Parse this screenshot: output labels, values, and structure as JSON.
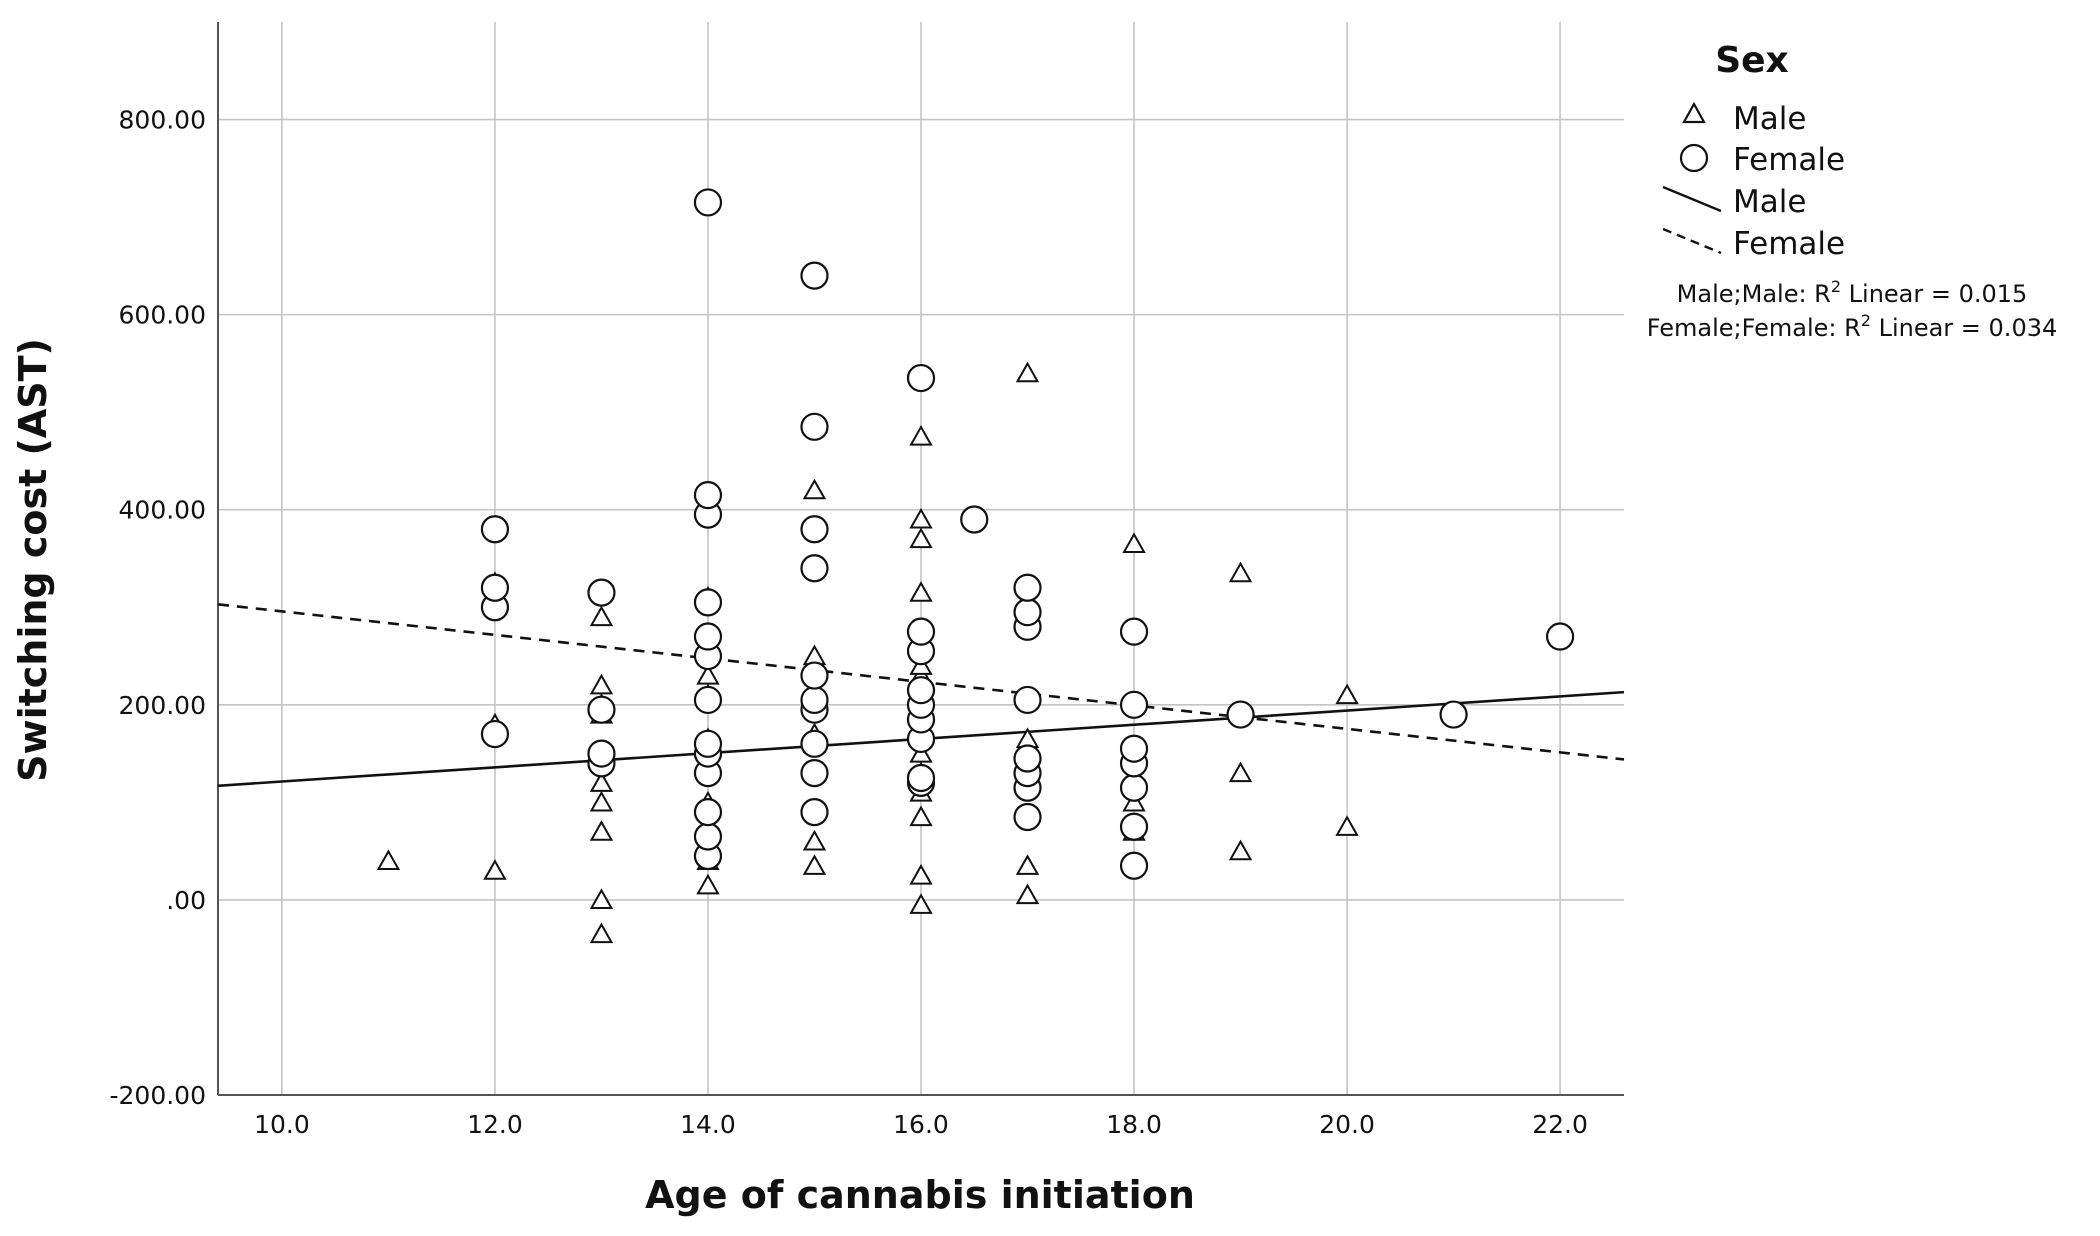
{
  "chart_data": {
    "type": "scatter",
    "xlabel": "Age of cannabis initiation",
    "ylabel": "Switching cost (AST)",
    "xlim": [
      9.4,
      22.6
    ],
    "ylim": [
      -200,
      900
    ],
    "x_ticks": [
      "10.0",
      "12.0",
      "14.0",
      "16.0",
      "18.0",
      "20.0",
      "22.0"
    ],
    "y_ticks": [
      "-200.00",
      ".00",
      "200.00",
      "400.00",
      "600.00",
      "800.00"
    ],
    "grid": true,
    "legend": {
      "title": "Sex",
      "placement": "right",
      "entries": [
        {
          "marker": "triangle",
          "label": "Male"
        },
        {
          "marker": "circle",
          "label": "Female"
        },
        {
          "marker": "solid-line",
          "label": "Male"
        },
        {
          "marker": "dashed-line",
          "label": "Female"
        }
      ],
      "r2_notes": [
        {
          "prefix": "Male;Male: R",
          "sup": "2",
          "suffix": " Linear = 0.015"
        },
        {
          "prefix": "Female;Female: R",
          "sup": "2",
          "suffix": " Linear = 0.034"
        }
      ]
    },
    "series": [
      {
        "name": "Male",
        "marker": "triangle",
        "points": [
          [
            11,
            40
          ],
          [
            12,
            30
          ],
          [
            12,
            180
          ],
          [
            12,
            325
          ],
          [
            13,
            -35
          ],
          [
            13,
            0
          ],
          [
            13,
            70
          ],
          [
            13,
            100
          ],
          [
            13,
            120
          ],
          [
            13,
            145
          ],
          [
            13,
            190
          ],
          [
            13,
            200
          ],
          [
            13,
            220
          ],
          [
            13,
            290
          ],
          [
            14,
            15
          ],
          [
            14,
            40
          ],
          [
            14,
            50
          ],
          [
            14,
            100
          ],
          [
            14,
            140
          ],
          [
            14,
            165
          ],
          [
            14,
            210
          ],
          [
            14,
            230
          ],
          [
            14,
            310
          ],
          [
            15,
            35
          ],
          [
            15,
            60
          ],
          [
            15,
            160
          ],
          [
            15,
            170
          ],
          [
            15,
            250
          ],
          [
            15,
            420
          ],
          [
            16,
            -5
          ],
          [
            16,
            25
          ],
          [
            16,
            85
          ],
          [
            16,
            110
          ],
          [
            16,
            130
          ],
          [
            16,
            150
          ],
          [
            16,
            200
          ],
          [
            16,
            230
          ],
          [
            16,
            240
          ],
          [
            16,
            315
          ],
          [
            16,
            370
          ],
          [
            16,
            390
          ],
          [
            16,
            475
          ],
          [
            17,
            5
          ],
          [
            17,
            35
          ],
          [
            17,
            140
          ],
          [
            17,
            155
          ],
          [
            17,
            165
          ],
          [
            17,
            540
          ],
          [
            18,
            70
          ],
          [
            18,
            100
          ],
          [
            18,
            155
          ],
          [
            18,
            365
          ],
          [
            19,
            50
          ],
          [
            19,
            130
          ],
          [
            19,
            335
          ],
          [
            20,
            75
          ],
          [
            20,
            210
          ]
        ]
      },
      {
        "name": "Female",
        "marker": "circle",
        "points": [
          [
            12,
            170
          ],
          [
            12,
            300
          ],
          [
            12,
            320
          ],
          [
            12,
            380
          ],
          [
            13,
            140
          ],
          [
            13,
            150
          ],
          [
            13,
            195
          ],
          [
            13,
            315
          ],
          [
            14,
            45
          ],
          [
            14,
            65
          ],
          [
            14,
            90
          ],
          [
            14,
            130
          ],
          [
            14,
            150
          ],
          [
            14,
            160
          ],
          [
            14,
            205
          ],
          [
            14,
            250
          ],
          [
            14,
            270
          ],
          [
            14,
            305
          ],
          [
            14,
            395
          ],
          [
            14,
            415
          ],
          [
            14,
            715
          ],
          [
            15,
            90
          ],
          [
            15,
            130
          ],
          [
            15,
            160
          ],
          [
            15,
            195
          ],
          [
            15,
            205
          ],
          [
            15,
            230
          ],
          [
            15,
            340
          ],
          [
            15,
            380
          ],
          [
            15,
            485
          ],
          [
            15,
            640
          ],
          [
            16,
            120
          ],
          [
            16,
            125
          ],
          [
            16,
            165
          ],
          [
            16,
            185
          ],
          [
            16,
            200
          ],
          [
            16,
            215
          ],
          [
            16,
            255
          ],
          [
            16,
            275
          ],
          [
            16,
            535
          ],
          [
            16.5,
            390
          ],
          [
            17,
            85
          ],
          [
            17,
            115
          ],
          [
            17,
            130
          ],
          [
            17,
            145
          ],
          [
            17,
            205
          ],
          [
            17,
            280
          ],
          [
            17,
            295
          ],
          [
            17,
            320
          ],
          [
            18,
            35
          ],
          [
            18,
            75
          ],
          [
            18,
            115
          ],
          [
            18,
            140
          ],
          [
            18,
            155
          ],
          [
            18,
            200
          ],
          [
            18,
            275
          ],
          [
            19,
            190
          ],
          [
            21,
            190
          ],
          [
            22,
            270
          ]
        ]
      }
    ],
    "fit_lines": [
      {
        "name": "Male",
        "style": "solid",
        "points": [
          [
            9.4,
            117
          ],
          [
            22.6,
            213
          ]
        ]
      },
      {
        "name": "Female",
        "style": "dashed",
        "points": [
          [
            9.4,
            303
          ],
          [
            22.6,
            144
          ]
        ]
      }
    ]
  }
}
